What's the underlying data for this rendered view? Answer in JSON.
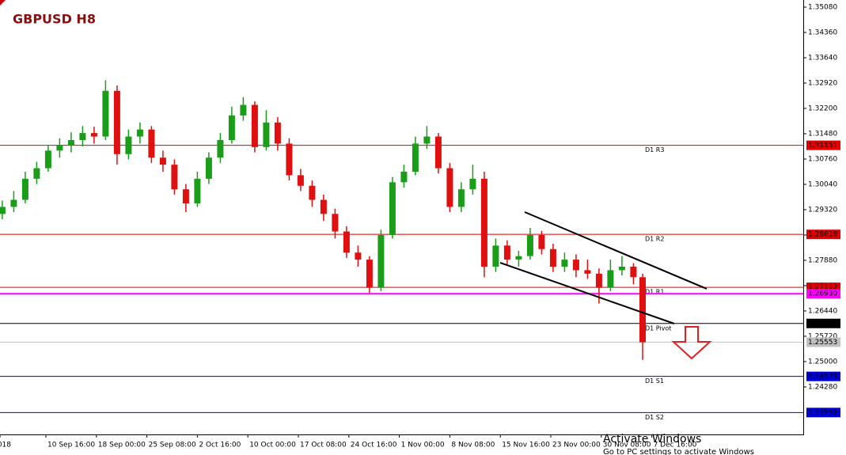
{
  "chart_data": {
    "type": "candlestick",
    "title": "GBPUSD H8",
    "x": [
      1,
      6,
      11,
      16,
      21,
      26,
      31,
      36,
      41,
      46,
      51,
      56,
      61,
      66,
      71,
      76,
      81,
      86,
      91,
      96,
      101,
      106,
      111,
      116,
      121,
      126,
      131,
      136,
      141,
      146,
      151,
      156,
      161,
      166,
      171,
      176,
      181,
      186,
      191,
      196,
      201,
      206,
      211,
      216,
      221,
      226,
      231,
      236,
      241,
      246,
      251,
      256,
      261,
      266,
      271,
      276,
      280
    ],
    "open": [
      1.292,
      1.294,
      1.296,
      1.302,
      1.305,
      1.31,
      1.3115,
      1.313,
      1.315,
      1.314,
      1.327,
      1.309,
      1.314,
      1.316,
      1.308,
      1.306,
      1.299,
      1.295,
      1.302,
      1.308,
      1.313,
      1.32,
      1.323,
      1.311,
      1.318,
      1.312,
      1.303,
      1.3,
      1.296,
      1.292,
      1.287,
      1.281,
      1.279,
      1.271,
      1.286,
      1.301,
      1.304,
      1.312,
      1.314,
      1.305,
      1.294,
      1.299,
      1.302,
      1.277,
      1.283,
      1.279,
      1.28,
      1.286,
      1.282,
      1.277,
      1.279,
      1.276,
      1.275,
      1.271,
      1.276,
      1.277,
      1.274
    ],
    "high": [
      1.2958,
      1.2985,
      1.304,
      1.3068,
      1.3115,
      1.3135,
      1.3152,
      1.317,
      1.3168,
      1.33,
      1.3285,
      1.316,
      1.318,
      1.317,
      1.31,
      1.3075,
      1.3005,
      1.304,
      1.3095,
      1.315,
      1.3225,
      1.3252,
      1.324,
      1.3215,
      1.3195,
      1.3135,
      1.3048,
      1.3015,
      1.2975,
      1.2935,
      1.2885,
      1.283,
      1.28,
      1.2875,
      1.3025,
      1.306,
      1.314,
      1.317,
      1.315,
      1.3065,
      1.301,
      1.306,
      1.304,
      1.285,
      1.2845,
      1.2815,
      1.288,
      1.2872,
      1.2835,
      1.281,
      1.2805,
      1.279,
      1.2765,
      1.279,
      1.28,
      1.278,
      1.275
    ],
    "low": [
      1.2905,
      1.2925,
      1.295,
      1.3005,
      1.304,
      1.308,
      1.3095,
      1.3112,
      1.312,
      1.313,
      1.306,
      1.3075,
      1.312,
      1.3065,
      1.304,
      1.2975,
      1.2925,
      1.294,
      1.3005,
      1.3065,
      1.312,
      1.3185,
      1.3095,
      1.31,
      1.31,
      1.3015,
      1.2985,
      1.294,
      1.29,
      1.285,
      1.2795,
      1.277,
      1.2695,
      1.27,
      1.285,
      1.2995,
      1.303,
      1.3105,
      1.3035,
      1.2925,
      1.2925,
      1.2975,
      1.274,
      1.2755,
      1.2775,
      1.277,
      1.279,
      1.2805,
      1.2755,
      1.2755,
      1.274,
      1.2735,
      1.2665,
      1.27,
      1.2745,
      1.272,
      1.2505
    ],
    "close": [
      1.294,
      1.296,
      1.302,
      1.305,
      1.31,
      1.3115,
      1.313,
      1.315,
      1.314,
      1.327,
      1.309,
      1.314,
      1.316,
      1.308,
      1.306,
      1.299,
      1.295,
      1.302,
      1.308,
      1.313,
      1.32,
      1.323,
      1.311,
      1.318,
      1.312,
      1.303,
      1.3,
      1.296,
      1.292,
      1.287,
      1.281,
      1.279,
      1.271,
      1.286,
      1.301,
      1.304,
      1.312,
      1.314,
      1.305,
      1.294,
      1.299,
      1.302,
      1.277,
      1.283,
      1.279,
      1.28,
      1.286,
      1.282,
      1.277,
      1.279,
      1.276,
      1.275,
      1.271,
      1.276,
      1.277,
      1.274,
      1.2555
    ],
    "up_color": "#1a9e1a",
    "down_color": "#e01010",
    "xlim": [
      0,
      350
    ],
    "xticks": [
      {
        "value": 0,
        "label": "018"
      },
      {
        "value": 20,
        "label": "10 Sep 16:00"
      },
      {
        "value": 42,
        "label": "18 Sep 00:00"
      },
      {
        "value": 64,
        "label": "25 Sep 08:00"
      },
      {
        "value": 86,
        "label": "2 Oct 16:00"
      },
      {
        "value": 108,
        "label": "10 Oct 00:00"
      },
      {
        "value": 130,
        "label": "17 Oct 08:00"
      },
      {
        "value": 152,
        "label": "24 Oct 16:00"
      },
      {
        "value": 174,
        "label": "1 Nov 00:00"
      },
      {
        "value": 196,
        "label": "8 Nov 08:00"
      },
      {
        "value": 218,
        "label": "15 Nov 16:00"
      },
      {
        "value": 240,
        "label": "23 Nov 00:00"
      },
      {
        "value": 262,
        "label": "30 Nov 08:00"
      },
      {
        "value": 284,
        "label": "7 Dec 16:00"
      }
    ],
    "ylim": [
      1.22929,
      1.35283
    ],
    "yticks": [
      {
        "value": 1.3508,
        "label": "1.35080"
      },
      {
        "value": 1.3436,
        "label": "1.34360"
      },
      {
        "value": 1.3364,
        "label": "1.33640"
      },
      {
        "value": 1.3292,
        "label": "1.32920"
      },
      {
        "value": 1.322,
        "label": "1.32200"
      },
      {
        "value": 1.3148,
        "label": "1.31480"
      },
      {
        "value": 1.3076,
        "label": "1.30760"
      },
      {
        "value": 1.3004,
        "label": "1.30040"
      },
      {
        "value": 1.2932,
        "label": "1.29320"
      },
      {
        "value": 1.286,
        "label": "1.28600"
      },
      {
        "value": 1.2788,
        "label": "1.27880"
      },
      {
        "value": 1.2716,
        "label": "1.27160"
      },
      {
        "value": 1.2644,
        "label": "1.26440"
      },
      {
        "value": 1.2572,
        "label": "1.25720"
      },
      {
        "value": 1.25,
        "label": "1.25000"
      },
      {
        "value": 1.2428,
        "label": "1.24280"
      }
    ],
    "levels": [
      {
        "name": "D1 R3",
        "value": 1.31151,
        "color": "#e00000"
      },
      {
        "name": "D1 R2",
        "value": 1.28618,
        "color": "#e00000"
      },
      {
        "name": "D1 R1",
        "value": 1.27112,
        "color": "#e00000"
      },
      {
        "value": 1.2693,
        "value_label": "1.26930",
        "color": "#ff00ff"
      },
      {
        "name": "D1 Pivot",
        "value": 1.26085,
        "color": "#000000"
      },
      {
        "value": 1.25553,
        "color": "#c0c0c0"
      },
      {
        "name": "D1 S1",
        "value": 1.24579,
        "color": "#0000d0"
      },
      {
        "name": "D1 S2",
        "value": 1.23552,
        "color": "#0000d0"
      }
    ],
    "watermark": [
      "Activate Windows",
      "Go to PC settings to activate Windows"
    ]
  }
}
